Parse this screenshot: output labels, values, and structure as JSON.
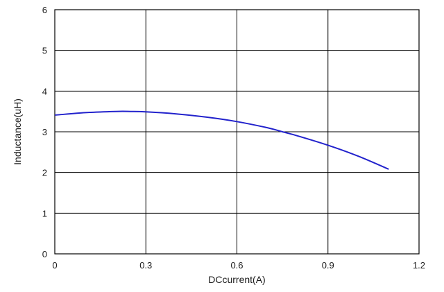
{
  "chart_data": {
    "type": "line",
    "title": "",
    "xlabel": "DCcurrent(A)",
    "ylabel": "Inductance(uH)",
    "xlim": [
      0,
      1.2
    ],
    "ylim": [
      0,
      6
    ],
    "x_ticks": [
      "0",
      "0.3",
      "0.6",
      "0.9",
      "1.2"
    ],
    "y_ticks": [
      "0",
      "1",
      "2",
      "3",
      "4",
      "5",
      "6"
    ],
    "grid": true,
    "legend": "none",
    "series": [
      {
        "color": "#2222cc",
        "x": [
          0,
          0.1,
          0.2,
          0.25,
          0.3,
          0.4,
          0.5,
          0.6,
          0.7,
          0.75,
          0.8,
          0.9,
          1.0,
          1.1
        ],
        "y": [
          3.41,
          3.47,
          3.5,
          3.5,
          3.49,
          3.44,
          3.36,
          3.25,
          3.1,
          3.0,
          2.9,
          2.67,
          2.4,
          2.08
        ]
      }
    ]
  }
}
